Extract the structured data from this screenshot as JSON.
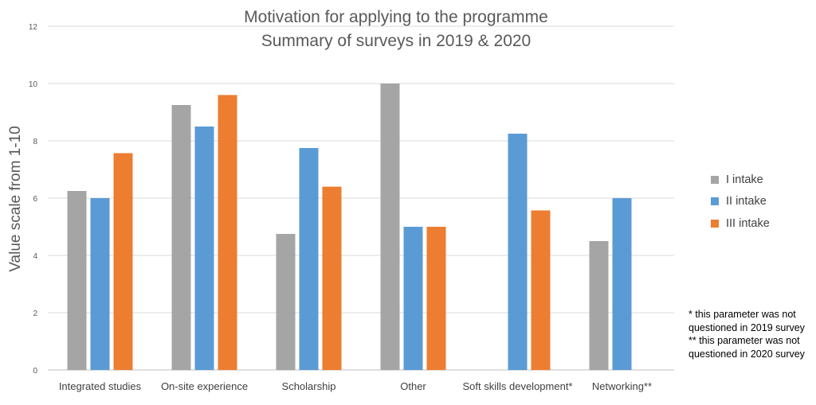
{
  "chart_data": {
    "type": "bar",
    "title": "Motivation for applying to the programme",
    "subtitle": "Summary of surveys in 2019 & 2020",
    "ylabel": "Value scale from 1-10",
    "xlabel": "",
    "ylim": [
      0,
      12
    ],
    "yticks": [
      0,
      2,
      4,
      6,
      8,
      10,
      12
    ],
    "grid": true,
    "legend_position": "right",
    "categories": [
      "Integrated studies",
      "On-site experience",
      "Scholarship",
      "Other",
      "Soft skills development*",
      "Networking**"
    ],
    "series": [
      {
        "name": "I intake",
        "color": "#a5a5a5",
        "values": [
          6.25,
          9.25,
          4.75,
          10,
          null,
          4.5
        ]
      },
      {
        "name": "II intake",
        "color": "#5b9bd5",
        "values": [
          6.0,
          8.5,
          7.75,
          5.0,
          8.25,
          6.0
        ]
      },
      {
        "name": "III intake",
        "color": "#ed7d31",
        "values": [
          7.57,
          9.6,
          6.4,
          5.0,
          5.57,
          null
        ]
      }
    ]
  },
  "footnotes": [
    "* this parameter was not questioned in 2019 survey",
    "** this parameter was not questioned in 2020 survey"
  ]
}
